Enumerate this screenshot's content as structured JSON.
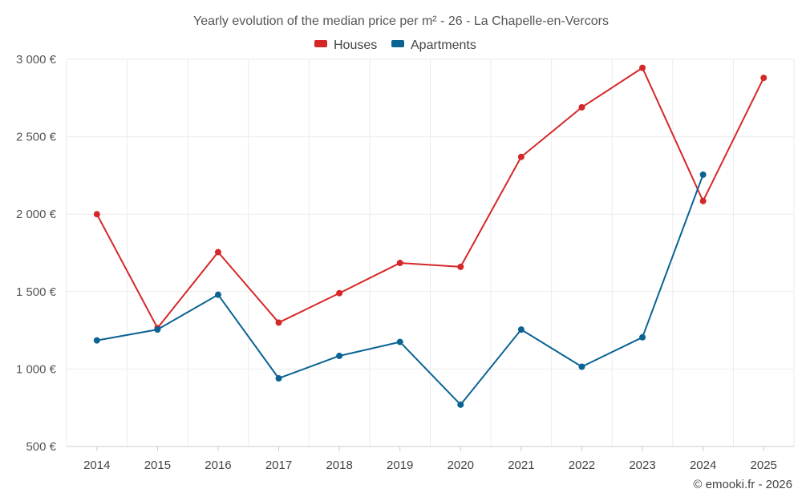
{
  "chart_data": {
    "type": "line",
    "title": "Yearly evolution of the median price per m² - 26 - La Chapelle-en-Vercors",
    "categories": [
      "2014",
      "2015",
      "2016",
      "2017",
      "2018",
      "2019",
      "2020",
      "2021",
      "2022",
      "2023",
      "2024",
      "2025"
    ],
    "y_ticks": [
      500,
      1000,
      1500,
      2000,
      2500,
      3000
    ],
    "y_tick_labels": [
      "500 €",
      "1 000 €",
      "1 500 €",
      "2 000 €",
      "2 500 €",
      "3 000 €"
    ],
    "ylim": [
      500,
      3000
    ],
    "xlabel": "",
    "ylabel": "",
    "grid": true,
    "legend_position": "top-center",
    "series": [
      {
        "name": "Houses",
        "color": "#d62728",
        "values": [
          2000,
          1265,
          1755,
          1300,
          1490,
          1685,
          1660,
          2370,
          2690,
          2945,
          2085,
          2880
        ]
      },
      {
        "name": "Apartments",
        "color": "#0b6394",
        "values": [
          1185,
          1255,
          1480,
          940,
          1085,
          1175,
          770,
          1255,
          1015,
          1205,
          2255,
          null
        ]
      }
    ]
  },
  "credit": "© emooki.fr - 2026"
}
